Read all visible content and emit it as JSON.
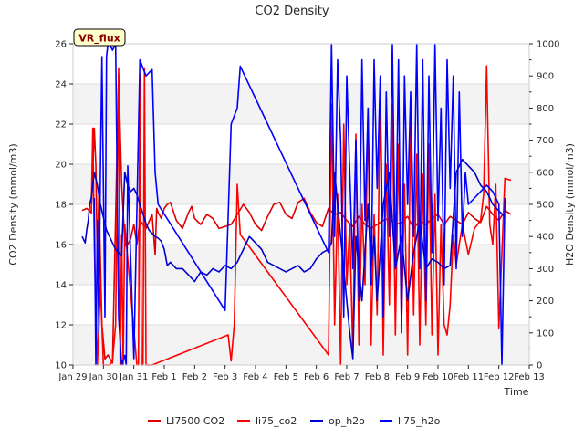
{
  "chart_data": {
    "type": "line",
    "title": "CO2 Density",
    "xlabel": "Time",
    "ylabel": "CO2 Density (mmol/m3)",
    "y2label": "H2O Density (mmol/m3)",
    "xlim": [
      0,
      15
    ],
    "ylim": [
      10,
      26
    ],
    "y2lim": [
      0,
      1000
    ],
    "x_ticks": [
      {
        "x": 0,
        "label": "Jan 29"
      },
      {
        "x": 1,
        "label": "Jan 30"
      },
      {
        "x": 2,
        "label": "Jan 31"
      },
      {
        "x": 3,
        "label": "Feb 1"
      },
      {
        "x": 4,
        "label": "Feb 2"
      },
      {
        "x": 5,
        "label": "Feb 3"
      },
      {
        "x": 6,
        "label": "Feb 4"
      },
      {
        "x": 7,
        "label": "Feb 5"
      },
      {
        "x": 8,
        "label": "Feb 6"
      },
      {
        "x": 9,
        "label": "Feb 7"
      },
      {
        "x": 10,
        "label": "Feb 8"
      },
      {
        "x": 11,
        "label": "Feb 9"
      },
      {
        "x": 12,
        "label": "Feb 10"
      },
      {
        "x": 13,
        "label": "Feb 11"
      },
      {
        "x": 14,
        "label": "Feb 12"
      },
      {
        "x": 15,
        "label": "Feb 13"
      }
    ],
    "y_ticks": [
      10,
      12,
      14,
      16,
      18,
      20,
      22,
      24,
      26
    ],
    "y2_ticks": [
      0,
      100,
      200,
      300,
      400,
      500,
      600,
      700,
      800,
      900,
      1000
    ],
    "grid": true,
    "legend_position": "bottom",
    "annotation": "VR_flux",
    "x_units_note": "days since Jan 29",
    "series": [
      {
        "name": "LI7500 CO2",
        "color": "#dd0000",
        "axis": "left",
        "x": [
          0.3,
          0.45,
          0.6,
          0.7,
          0.75,
          0.8,
          0.85,
          0.95,
          1.05,
          1.15,
          1.3,
          1.5,
          1.6,
          1.7,
          1.75,
          1.8,
          1.9,
          2.0,
          2.1,
          2.2,
          2.4,
          2.6,
          2.7,
          2.75,
          2.8,
          2.9,
          3.0,
          3.1,
          3.2,
          3.4,
          3.6,
          3.8,
          3.9,
          4.0,
          4.2,
          4.4,
          4.6,
          4.8,
          5.0,
          5.2,
          5.4,
          5.6,
          5.8,
          6.0,
          6.2,
          6.4,
          6.6,
          6.8,
          7.0,
          7.2,
          7.4,
          7.6,
          7.8,
          8.0,
          8.2,
          8.4,
          8.6,
          8.8,
          9.0,
          9.2,
          9.4,
          9.6,
          9.8,
          10.0,
          10.2,
          10.4,
          10.6,
          10.8,
          11.0,
          11.2,
          11.4,
          11.6,
          11.8,
          12.0,
          12.2,
          12.4,
          12.6,
          12.8,
          13.0,
          13.2,
          13.4,
          13.6,
          13.8,
          14.0,
          14.2,
          14.4
        ],
        "y": [
          17.7,
          17.8,
          17.6,
          21.8,
          20.0,
          15.0,
          18.5,
          12.0,
          10.3,
          10.5,
          10.1,
          24.5,
          19.0,
          16.2,
          15.9,
          16.0,
          16.3,
          17.0,
          16.0,
          17.2,
          16.8,
          17.5,
          15.5,
          17.8,
          17.6,
          17.3,
          17.8,
          18.0,
          18.1,
          17.2,
          16.8,
          17.6,
          17.9,
          17.3,
          17.0,
          17.5,
          17.3,
          16.8,
          16.9,
          17.0,
          17.5,
          18.0,
          17.6,
          17.0,
          16.7,
          17.4,
          18.0,
          18.1,
          17.5,
          17.3,
          18.1,
          18.3,
          17.6,
          17.1,
          16.9,
          17.8,
          17.5,
          17.6,
          17.2,
          16.9,
          17.4,
          17.0,
          16.8,
          17.0,
          17.2,
          17.3,
          17.0,
          17.1,
          17.4,
          16.8,
          17.2,
          17.0,
          17.3,
          17.5,
          17.0,
          17.4,
          17.2,
          17.0,
          17.6,
          17.3,
          17.1,
          17.9,
          17.5,
          17.2,
          17.7,
          17.5
        ]
      },
      {
        "name": "li75_co2",
        "color": "#ff0000",
        "axis": "left",
        "x": [
          0.6,
          0.65,
          0.7,
          0.75,
          0.8,
          0.9,
          1.0,
          1.1,
          1.2,
          1.3,
          1.4,
          1.5,
          1.55,
          1.6,
          1.65,
          1.7,
          2.1,
          2.15,
          2.2,
          2.25,
          2.3,
          2.35,
          2.4,
          2.5,
          2.6,
          5.1,
          5.2,
          5.3,
          5.4,
          5.5,
          8.4,
          8.5,
          8.6,
          8.7,
          8.8,
          8.9,
          9.0,
          9.1,
          9.2,
          9.3,
          9.4,
          9.5,
          9.6,
          9.7,
          9.8,
          9.9,
          10.0,
          10.1,
          10.2,
          10.3,
          10.4,
          10.5,
          10.6,
          10.7,
          10.8,
          10.9,
          11.0,
          11.1,
          11.2,
          11.3,
          11.4,
          11.5,
          11.6,
          11.7,
          11.8,
          11.9,
          12.0,
          12.1,
          12.2,
          12.3,
          12.4,
          12.5,
          12.6,
          12.7,
          12.8,
          13.0,
          13.2,
          13.4,
          13.5,
          13.6,
          13.7,
          13.8,
          13.9,
          14.0,
          14.2,
          14.4
        ],
        "y": [
          17.5,
          21.8,
          16.0,
          13.0,
          10.0,
          14.0,
          10.0,
          10.0,
          10.0,
          10.2,
          12.0,
          24.8,
          10.0,
          16.5,
          10.0,
          17.0,
          10.0,
          10.0,
          24.5,
          10.0,
          10.0,
          24.8,
          10.0,
          10.0,
          10.0,
          11.5,
          10.2,
          12.0,
          19.0,
          16.5,
          10.5,
          23.0,
          12.0,
          18.5,
          10.0,
          22.0,
          14.0,
          17.0,
          10.5,
          21.5,
          11.0,
          18.0,
          14.0,
          22.5,
          11.0,
          17.5,
          12.5,
          23.5,
          10.5,
          20.0,
          13.0,
          23.0,
          11.5,
          21.0,
          12.0,
          19.0,
          10.5,
          22.0,
          12.5,
          20.5,
          11.0,
          19.5,
          12.0,
          21.0,
          11.5,
          18.5,
          10.5,
          17.0,
          12.0,
          11.5,
          13.0,
          16.5,
          15.0,
          16.0,
          17.0,
          15.5,
          16.8,
          17.2,
          18.5,
          24.9,
          17.0,
          16.0,
          19.0,
          11.8,
          19.3,
          19.2
        ]
      },
      {
        "name": "op_h2o",
        "color": "#0000cc",
        "axis": "right",
        "x": [
          0.3,
          0.35,
          0.4,
          0.45,
          0.5,
          0.55,
          0.6,
          0.7,
          0.8,
          0.9,
          1.0,
          1.1,
          1.2,
          1.3,
          1.4,
          1.5,
          1.6,
          1.7,
          1.8,
          1.9,
          2.0,
          2.1,
          2.2,
          2.3,
          2.4,
          2.5,
          2.6,
          2.7,
          2.8,
          2.9,
          3.0,
          3.1,
          3.2,
          3.4,
          3.6,
          3.8,
          4.0,
          4.2,
          4.4,
          4.6,
          4.8,
          5.0,
          5.2,
          5.4,
          5.6,
          5.8,
          6.0,
          6.2,
          6.4,
          6.6,
          6.8,
          7.0,
          7.2,
          7.4,
          7.6,
          7.8,
          8.0,
          8.2,
          8.4,
          8.5,
          8.6,
          8.7,
          8.8,
          8.9,
          9.0,
          9.1,
          9.2,
          9.3,
          9.4,
          9.5,
          9.6,
          9.7,
          9.8,
          9.9,
          10.0,
          10.2,
          10.4,
          10.6,
          10.8,
          11.0,
          11.2,
          11.4,
          11.6,
          11.8,
          12.0,
          12.2,
          12.4,
          12.6,
          12.8,
          13.0,
          13.2,
          13.4,
          13.6,
          13.8,
          14.0,
          14.2
        ],
        "y": [
          400,
          390,
          380,
          420,
          450,
          500,
          520,
          600,
          560,
          500,
          460,
          420,
          400,
          380,
          360,
          350,
          340,
          600,
          560,
          540,
          550,
          530,
          500,
          470,
          440,
          420,
          410,
          400,
          395,
          385,
          360,
          310,
          320,
          300,
          300,
          280,
          260,
          290,
          280,
          300,
          290,
          310,
          300,
          320,
          360,
          400,
          380,
          360,
          320,
          310,
          300,
          290,
          300,
          310,
          290,
          300,
          330,
          350,
          360,
          380,
          600,
          500,
          400,
          300,
          200,
          100,
          20,
          400,
          300,
          200,
          350,
          500,
          300,
          400,
          200,
          500,
          600,
          300,
          400,
          200,
          350,
          450,
          300,
          330,
          320,
          300,
          310,
          600,
          640,
          620,
          600,
          560,
          540,
          500,
          480,
          460
        ]
      },
      {
        "name": "li75_h2o",
        "color": "#0000ff",
        "axis": "right",
        "x": [
          0.7,
          0.75,
          0.8,
          0.85,
          0.9,
          0.95,
          1.0,
          1.05,
          1.1,
          1.15,
          1.2,
          1.3,
          1.4,
          1.5,
          1.6,
          1.7,
          1.75,
          1.8,
          2.0,
          2.2,
          2.4,
          2.6,
          2.7,
          2.8,
          5.0,
          5.2,
          5.4,
          5.5,
          8.4,
          8.5,
          8.6,
          8.7,
          8.8,
          8.9,
          9.0,
          9.1,
          9.2,
          9.3,
          9.4,
          9.5,
          9.6,
          9.7,
          9.8,
          9.9,
          10.0,
          10.1,
          10.2,
          10.3,
          10.4,
          10.5,
          10.6,
          10.7,
          10.8,
          10.9,
          11.0,
          11.1,
          11.2,
          11.3,
          11.4,
          11.5,
          11.6,
          11.7,
          11.8,
          11.9,
          12.0,
          12.1,
          12.2,
          12.3,
          12.4,
          12.5,
          12.6,
          12.7,
          12.8,
          12.9,
          13.0,
          13.2,
          13.4,
          13.6,
          13.8,
          14.0,
          14.1,
          14.2
        ],
        "y": [
          520,
          0,
          450,
          100,
          600,
          960,
          560,
          150,
          960,
          1000,
          1000,
          980,
          1000,
          150,
          0,
          30,
          0,
          620,
          20,
          950,
          900,
          920,
          600,
          500,
          170,
          750,
          800,
          930,
          350,
          1000,
          400,
          950,
          700,
          150,
          900,
          600,
          300,
          700,
          200,
          950,
          450,
          800,
          250,
          950,
          550,
          900,
          150,
          850,
          400,
          1000,
          300,
          950,
          100,
          900,
          500,
          850,
          400,
          1000,
          300,
          950,
          200,
          900,
          350,
          1000,
          450,
          800,
          250,
          950,
          550,
          900,
          300,
          850,
          400,
          600,
          500,
          520,
          540,
          560,
          540,
          500,
          0,
          520
        ]
      }
    ]
  }
}
